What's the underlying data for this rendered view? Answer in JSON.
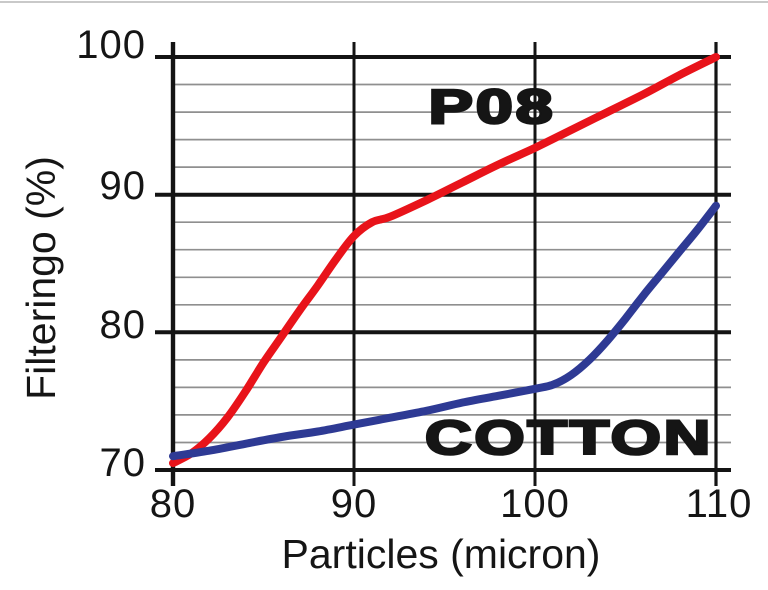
{
  "chart_data": {
    "type": "line",
    "title": "",
    "xlabel": "Particles (micron)",
    "ylabel": "Filteringo (%)",
    "xlim": [
      80,
      110
    ],
    "ylim": [
      70,
      100
    ],
    "x_ticks": [
      80,
      90,
      100,
      110
    ],
    "y_ticks": [
      70,
      80,
      90,
      100
    ],
    "x_tick_labels": [
      "80",
      "90",
      "100",
      "110"
    ],
    "y_tick_labels_top_to_bottom": [
      "100",
      "90",
      "80",
      "70"
    ],
    "minor_grid_step_y": 2,
    "grid": "on",
    "legend_position": "none",
    "annotations": [
      {
        "text": "P08",
        "series": "P08",
        "approx_x": 96,
        "approx_y": 96
      },
      {
        "text": "COTTON",
        "series": "COTTON",
        "approx_x": 102,
        "approx_y": 72.5
      }
    ],
    "series": [
      {
        "name": "P08",
        "color": "#e8131a",
        "x": [
          80,
          81,
          82,
          83,
          84,
          85,
          86,
          87,
          88,
          89,
          90,
          91,
          92,
          94,
          96,
          98,
          100,
          102,
          104,
          106,
          108,
          110
        ],
        "y": [
          70.5,
          71.2,
          72.3,
          73.8,
          75.7,
          77.8,
          79.7,
          81.6,
          83.4,
          85.3,
          87.0,
          88.0,
          88.4,
          89.6,
          90.9,
          92.2,
          93.4,
          94.7,
          96.0,
          97.3,
          98.7,
          100.0
        ]
      },
      {
        "name": "COTTON",
        "color": "#2e3a94",
        "x": [
          80,
          82,
          84,
          86,
          88,
          90,
          92,
          94,
          96,
          98,
          100,
          101,
          102,
          103,
          104,
          105,
          106,
          107,
          108,
          109,
          110
        ],
        "y": [
          71.0,
          71.4,
          71.9,
          72.4,
          72.8,
          73.3,
          73.8,
          74.3,
          74.9,
          75.4,
          75.9,
          76.2,
          76.9,
          78.0,
          79.4,
          81.0,
          82.7,
          84.3,
          85.9,
          87.5,
          89.2
        ]
      }
    ],
    "colors": {
      "series_p08": "#e8131a",
      "series_cotton": "#2e3a94",
      "grid_minor": "#8f8f8f",
      "grid_major": "#141414",
      "axis": "#141414",
      "text": "#151515",
      "background": "#ffffff",
      "scan_edge": "#b8b8b8"
    }
  }
}
